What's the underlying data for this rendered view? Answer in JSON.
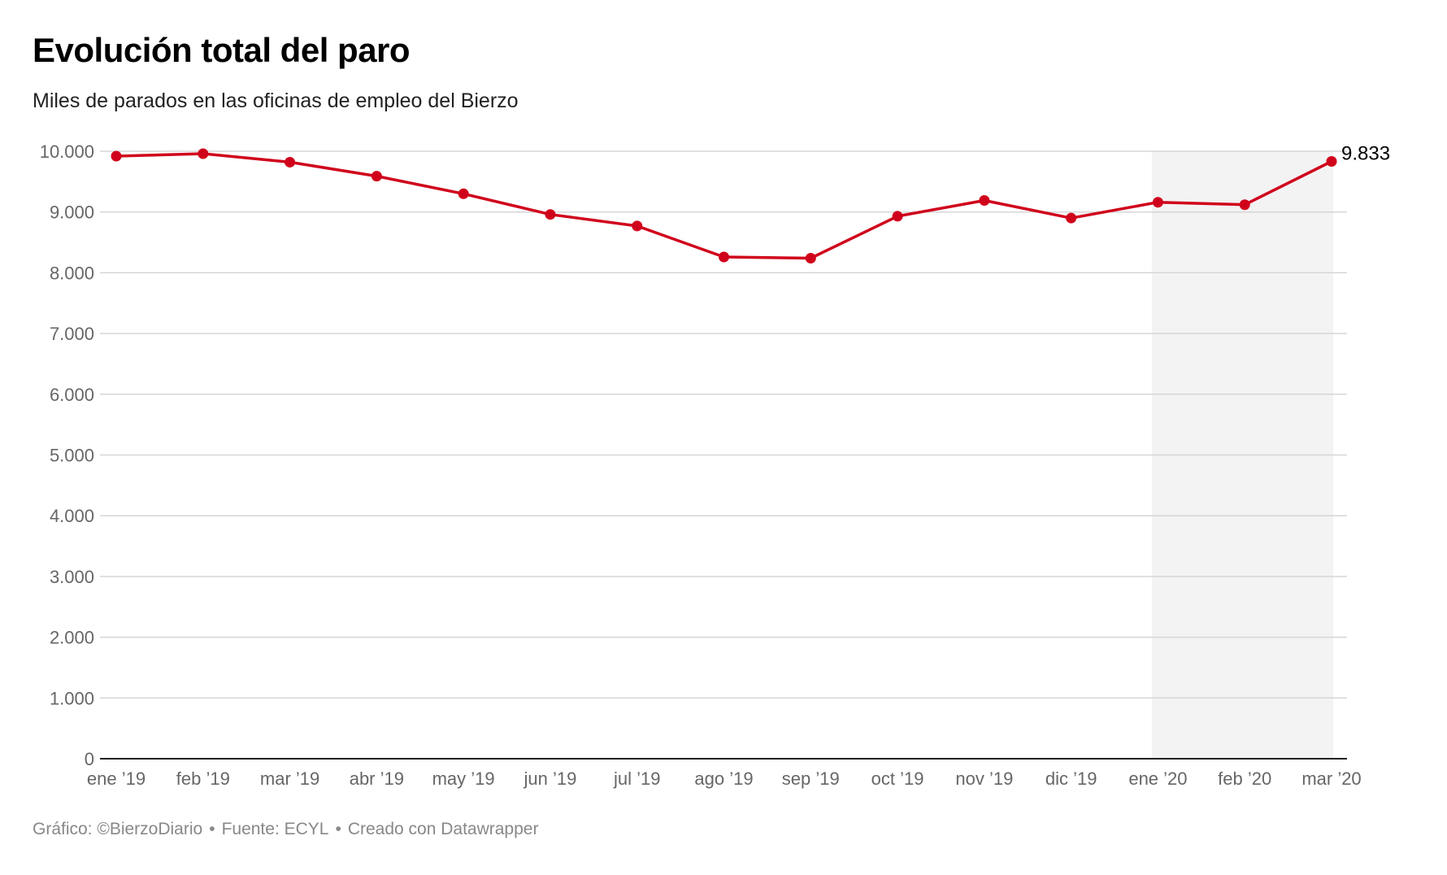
{
  "chart_data": {
    "type": "line",
    "title": "Evolución total del paro",
    "subtitle": "Miles de parados en las oficinas de empleo del Bierzo",
    "categories": [
      "ene ’19",
      "feb ’19",
      "mar ’19",
      "abr ’19",
      "may ’19",
      "jun ’19",
      "jul ’19",
      "ago ’19",
      "sep ’19",
      "oct ’19",
      "nov ’19",
      "dic ’19",
      "ene ’20",
      "feb ’20",
      "mar ’20"
    ],
    "series": [
      {
        "color": "#d0021b",
        "values": [
          9920,
          9960,
          9820,
          9590,
          9300,
          8960,
          8770,
          8260,
          8240,
          8930,
          9190,
          8900,
          9160,
          9120,
          9833
        ]
      }
    ],
    "ylim": [
      0,
      10000
    ],
    "yticks": [
      0,
      1000,
      2000,
      3000,
      4000,
      5000,
      6000,
      7000,
      8000,
      9000,
      10000
    ],
    "ytick_labels": [
      "0",
      "1.000",
      "2.000",
      "3.000",
      "4.000",
      "5.000",
      "6.000",
      "7.000",
      "8.000",
      "9.000",
      "10.000"
    ],
    "grid": true,
    "highlight_range": [
      "ene ’20",
      "mar ’20"
    ],
    "highlight_color": "#f3f3f3",
    "annotation": {
      "category": "mar ’20",
      "value": 9833,
      "label": "9.833"
    },
    "xlabel": "",
    "ylabel": ""
  },
  "footer": {
    "grafico": "Gráfico: ©BierzoDiario",
    "fuente": "Fuente: ECYL",
    "creado": "Creado con Datawrapper",
    "separator": "•"
  }
}
